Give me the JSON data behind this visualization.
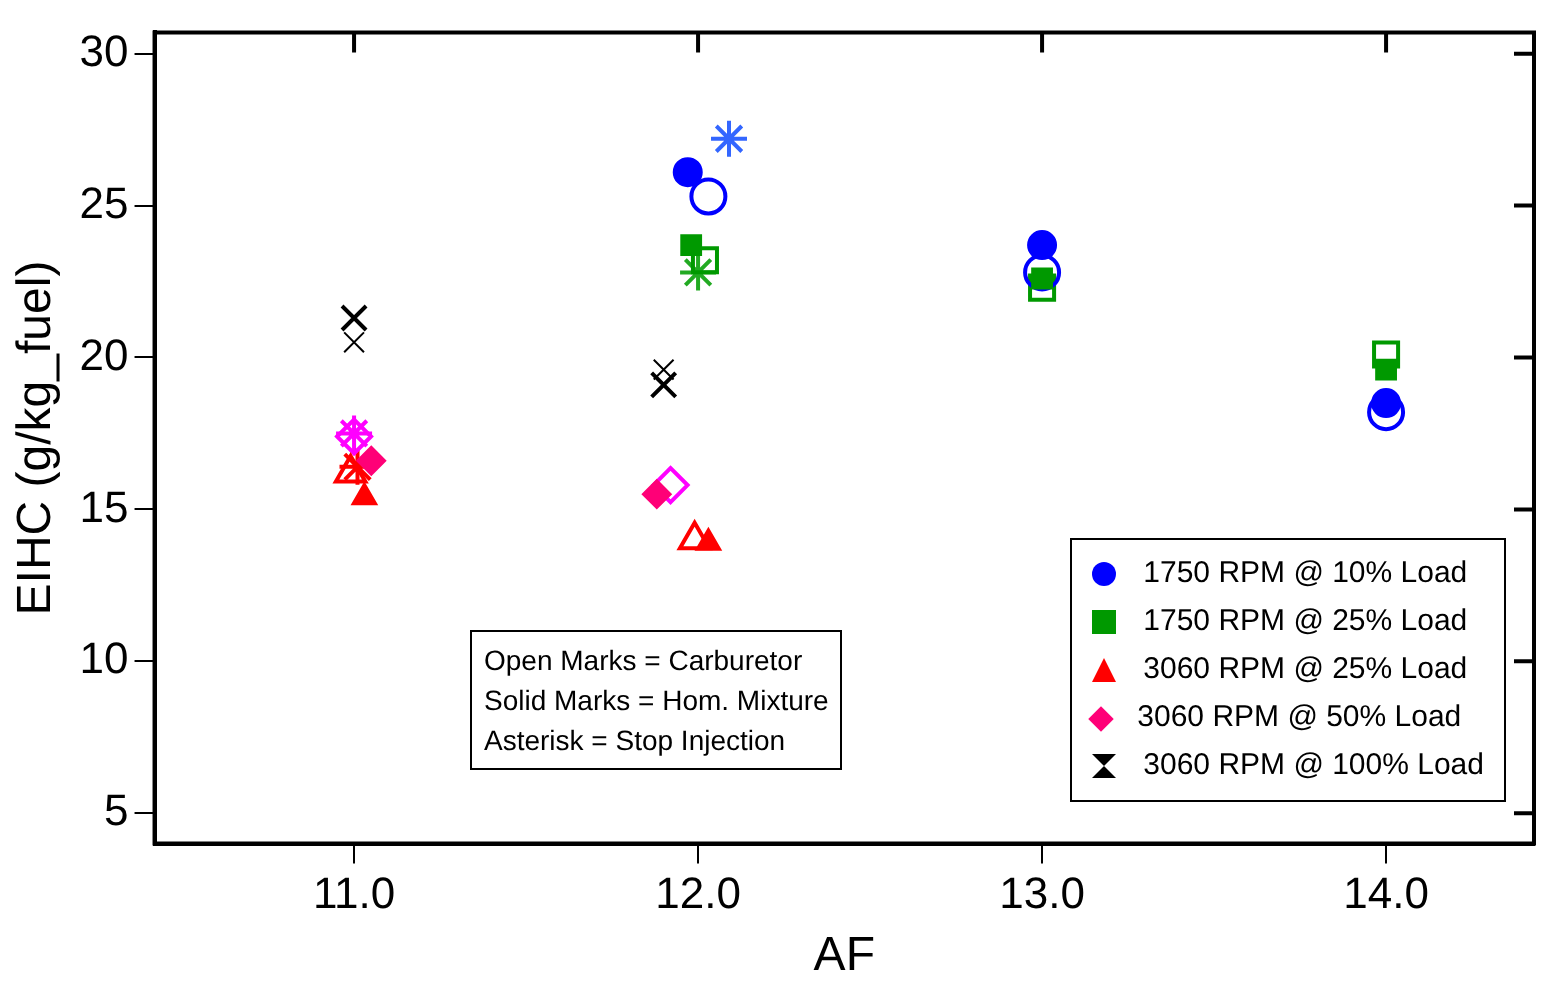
{
  "chart_data": {
    "type": "scatter",
    "xlabel": "AF",
    "ylabel": "EIHC (g/kg_fuel)",
    "xlim": [
      10.42,
      14.43
    ],
    "ylim": [
      4,
      30.7
    ],
    "xticks": [
      {
        "value": 11,
        "label": "11.0"
      },
      {
        "value": 12,
        "label": "12.0"
      },
      {
        "value": 13,
        "label": "13.0"
      },
      {
        "value": 14,
        "label": "14.0"
      }
    ],
    "yticks": [
      5,
      10,
      15,
      20,
      25,
      30
    ],
    "grid": false,
    "legend": "bottom right",
    "annotations": [
      "Open Marks = Carburetor",
      "Solid Marks = Hom. Mixture",
      "Asterisk = Stop Injection"
    ],
    "series": [
      {
        "name": "1750 RPM @ 10% Load",
        "color": "#0000ff",
        "marker": "circle",
        "x": [
          11.97,
          13.0,
          14.0
        ],
        "values": [
          26.1,
          23.7,
          18.5
        ]
      },
      {
        "name": "1750 RPM @ 25% Load",
        "color": "#009900",
        "marker": "square",
        "x": [
          11.98,
          13.0,
          14.0
        ],
        "values": [
          23.7,
          22.6,
          19.6
        ]
      },
      {
        "name": "3060 RPM @ 25% Load",
        "color": "#ff0000",
        "marker": "triangle",
        "x": [
          11.03,
          12.03
        ],
        "values": [
          15.4,
          13.9
        ]
      },
      {
        "name": "3060 RPM @ 50% Load",
        "color": "#ff0077",
        "marker": "diamond",
        "x": [
          11.05,
          11.88
        ],
        "values": [
          16.6,
          15.5
        ]
      },
      {
        "name": "3060 RPM @ 100% Load",
        "color": "#000000",
        "marker": "cross",
        "x": [
          11.0,
          11.9
        ],
        "values": [
          20.5,
          19.6
        ]
      },
      {
        "color": "#0000ff",
        "marker": "circle",
        "x": [
          12.03,
          13.0,
          14.0
        ],
        "values": [
          25.3,
          22.8,
          18.2
        ]
      },
      {
        "color": "#009900",
        "marker": "square",
        "x": [
          12.02,
          13.0,
          14.0
        ],
        "values": [
          23.2,
          22.3,
          20.1
        ]
      },
      {
        "color": "#ff0000",
        "marker": "triangle",
        "x": [
          10.99,
          11.99
        ],
        "values": [
          16.2,
          14.0
        ]
      },
      {
        "color": "#ff00ff",
        "marker": "diamond",
        "x": [
          11.0,
          11.92
        ],
        "values": [
          17.4,
          15.8
        ]
      },
      {
        "color": "#000000",
        "marker": "cross",
        "x": [
          11.0,
          11.9
        ],
        "values": [
          21.3,
          19.1
        ]
      },
      {
        "color": "#3366ff",
        "marker": "cross",
        "x": [
          12.09
        ],
        "values": [
          27.2
        ]
      },
      {
        "color": "#22aa22",
        "marker": "cross",
        "x": [
          12.0
        ],
        "values": [
          22.8
        ]
      },
      {
        "color": "#ff0000",
        "marker": "cross",
        "x": [
          11.01
        ],
        "values": [
          16.4
        ]
      },
      {
        "color": "#ff00ff",
        "marker": "cross",
        "x": [
          11.0
        ],
        "values": [
          17.5
        ]
      }
    ]
  }
}
